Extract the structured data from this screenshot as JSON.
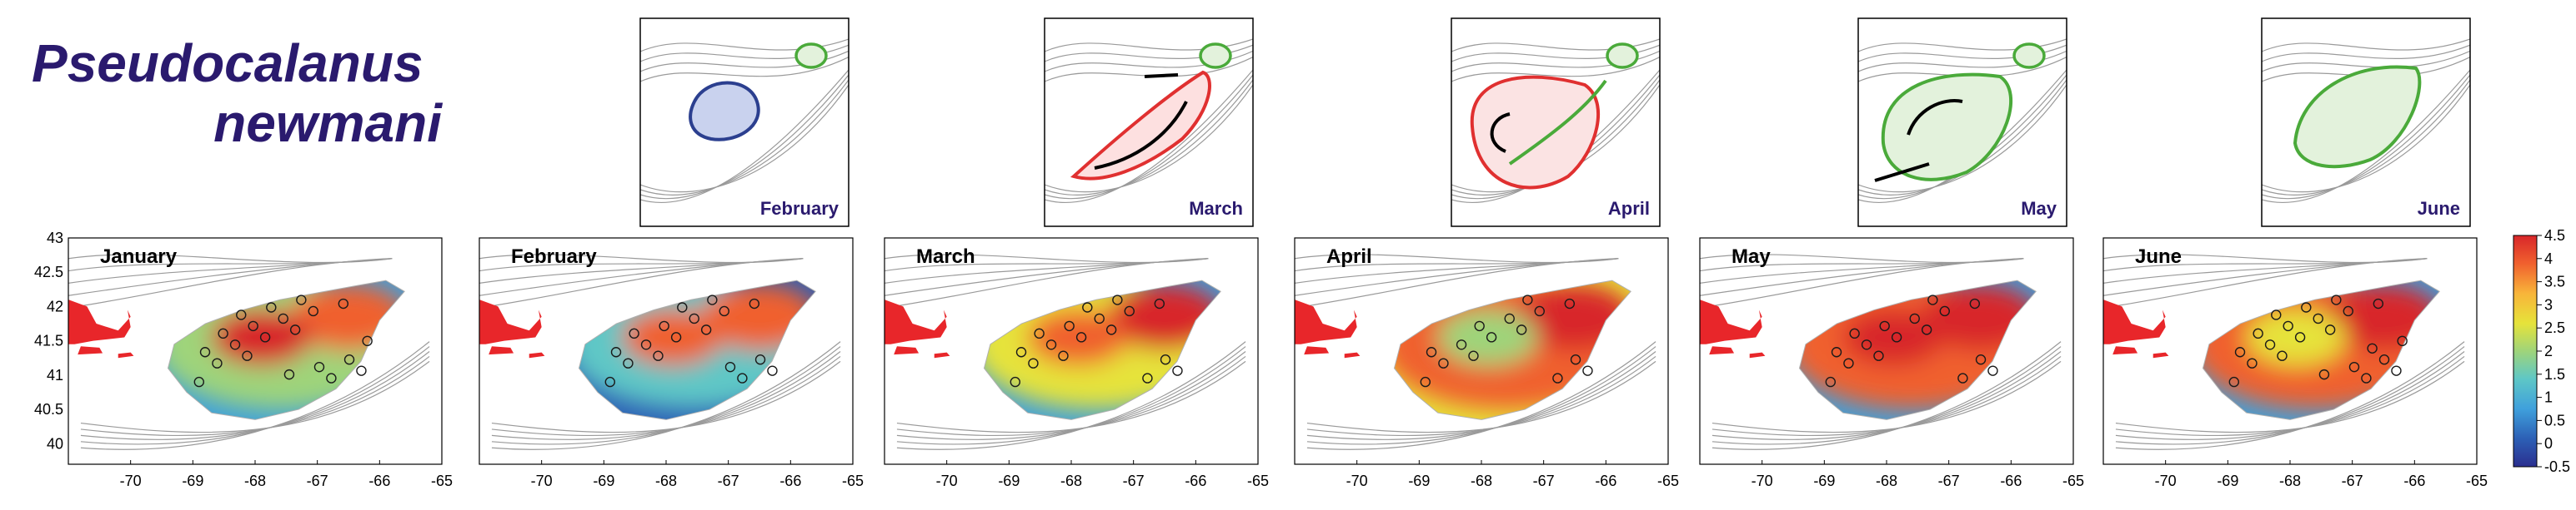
{
  "title": {
    "line1": "Pseudocalanus",
    "line2": "newmani"
  },
  "schematics": [
    {
      "label": "February",
      "theme": "blue",
      "outline_color": "#2b3f8f",
      "fill_color": "#c9d2ee"
    },
    {
      "label": "March",
      "theme": "red",
      "outline_color": "#e03030",
      "fill_color": "#fde0e0"
    },
    {
      "label": "April",
      "theme": "red-green",
      "outline_color": "#e03030",
      "fill_color": "#fbe3e3"
    },
    {
      "label": "May",
      "theme": "green",
      "outline_color": "#4aaa3a",
      "fill_color": "#e3f2dc"
    },
    {
      "label": "June",
      "theme": "green",
      "outline_color": "#4aaa3a",
      "fill_color": "#e3f2dc"
    }
  ],
  "chart_data": {
    "type": "heatmap",
    "panels": [
      {
        "label": "January",
        "bank_level": 2.2,
        "edge_level": 0.6,
        "hot_spots": [
          3.6,
          4.2
        ],
        "station_count": 21
      },
      {
        "label": "February",
        "bank_level": 1.3,
        "edge_level": 0.3,
        "hot_spots": [
          3.8,
          4.0
        ],
        "station_count": 18
      },
      {
        "label": "March",
        "bank_level": 2.8,
        "edge_level": 0.8,
        "hot_spots": [
          4.2,
          3.8
        ],
        "station_count": 17
      },
      {
        "label": "April",
        "bank_level": 3.9,
        "edge_level": 2.4,
        "hot_spots": [
          4.4,
          1.8
        ],
        "station_count": 15
      },
      {
        "label": "May",
        "bank_level": 4.0,
        "edge_level": 0.6,
        "hot_spots": [
          4.5,
          4.2
        ],
        "station_count": 16
      },
      {
        "label": "June",
        "bank_level": 3.8,
        "edge_level": 0.5,
        "hot_spots": [
          4.4,
          2.8
        ],
        "station_count": 22
      }
    ],
    "x_ticks": [
      "-70",
      "-69",
      "-68",
      "-67",
      "-66",
      "-65"
    ],
    "y_ticks": [
      "43",
      "42.5",
      "42",
      "41.5",
      "41",
      "40.5",
      "40"
    ],
    "xlim": [
      -71,
      -65
    ],
    "ylim": [
      39.7,
      43
    ],
    "colorbar": {
      "ticks": [
        "4.5",
        "4",
        "3.5",
        "3",
        "2.5",
        "2",
        "1.5",
        "1",
        "0.5",
        "0",
        "-0.5"
      ],
      "range": [
        -0.5,
        4.5
      ]
    }
  }
}
